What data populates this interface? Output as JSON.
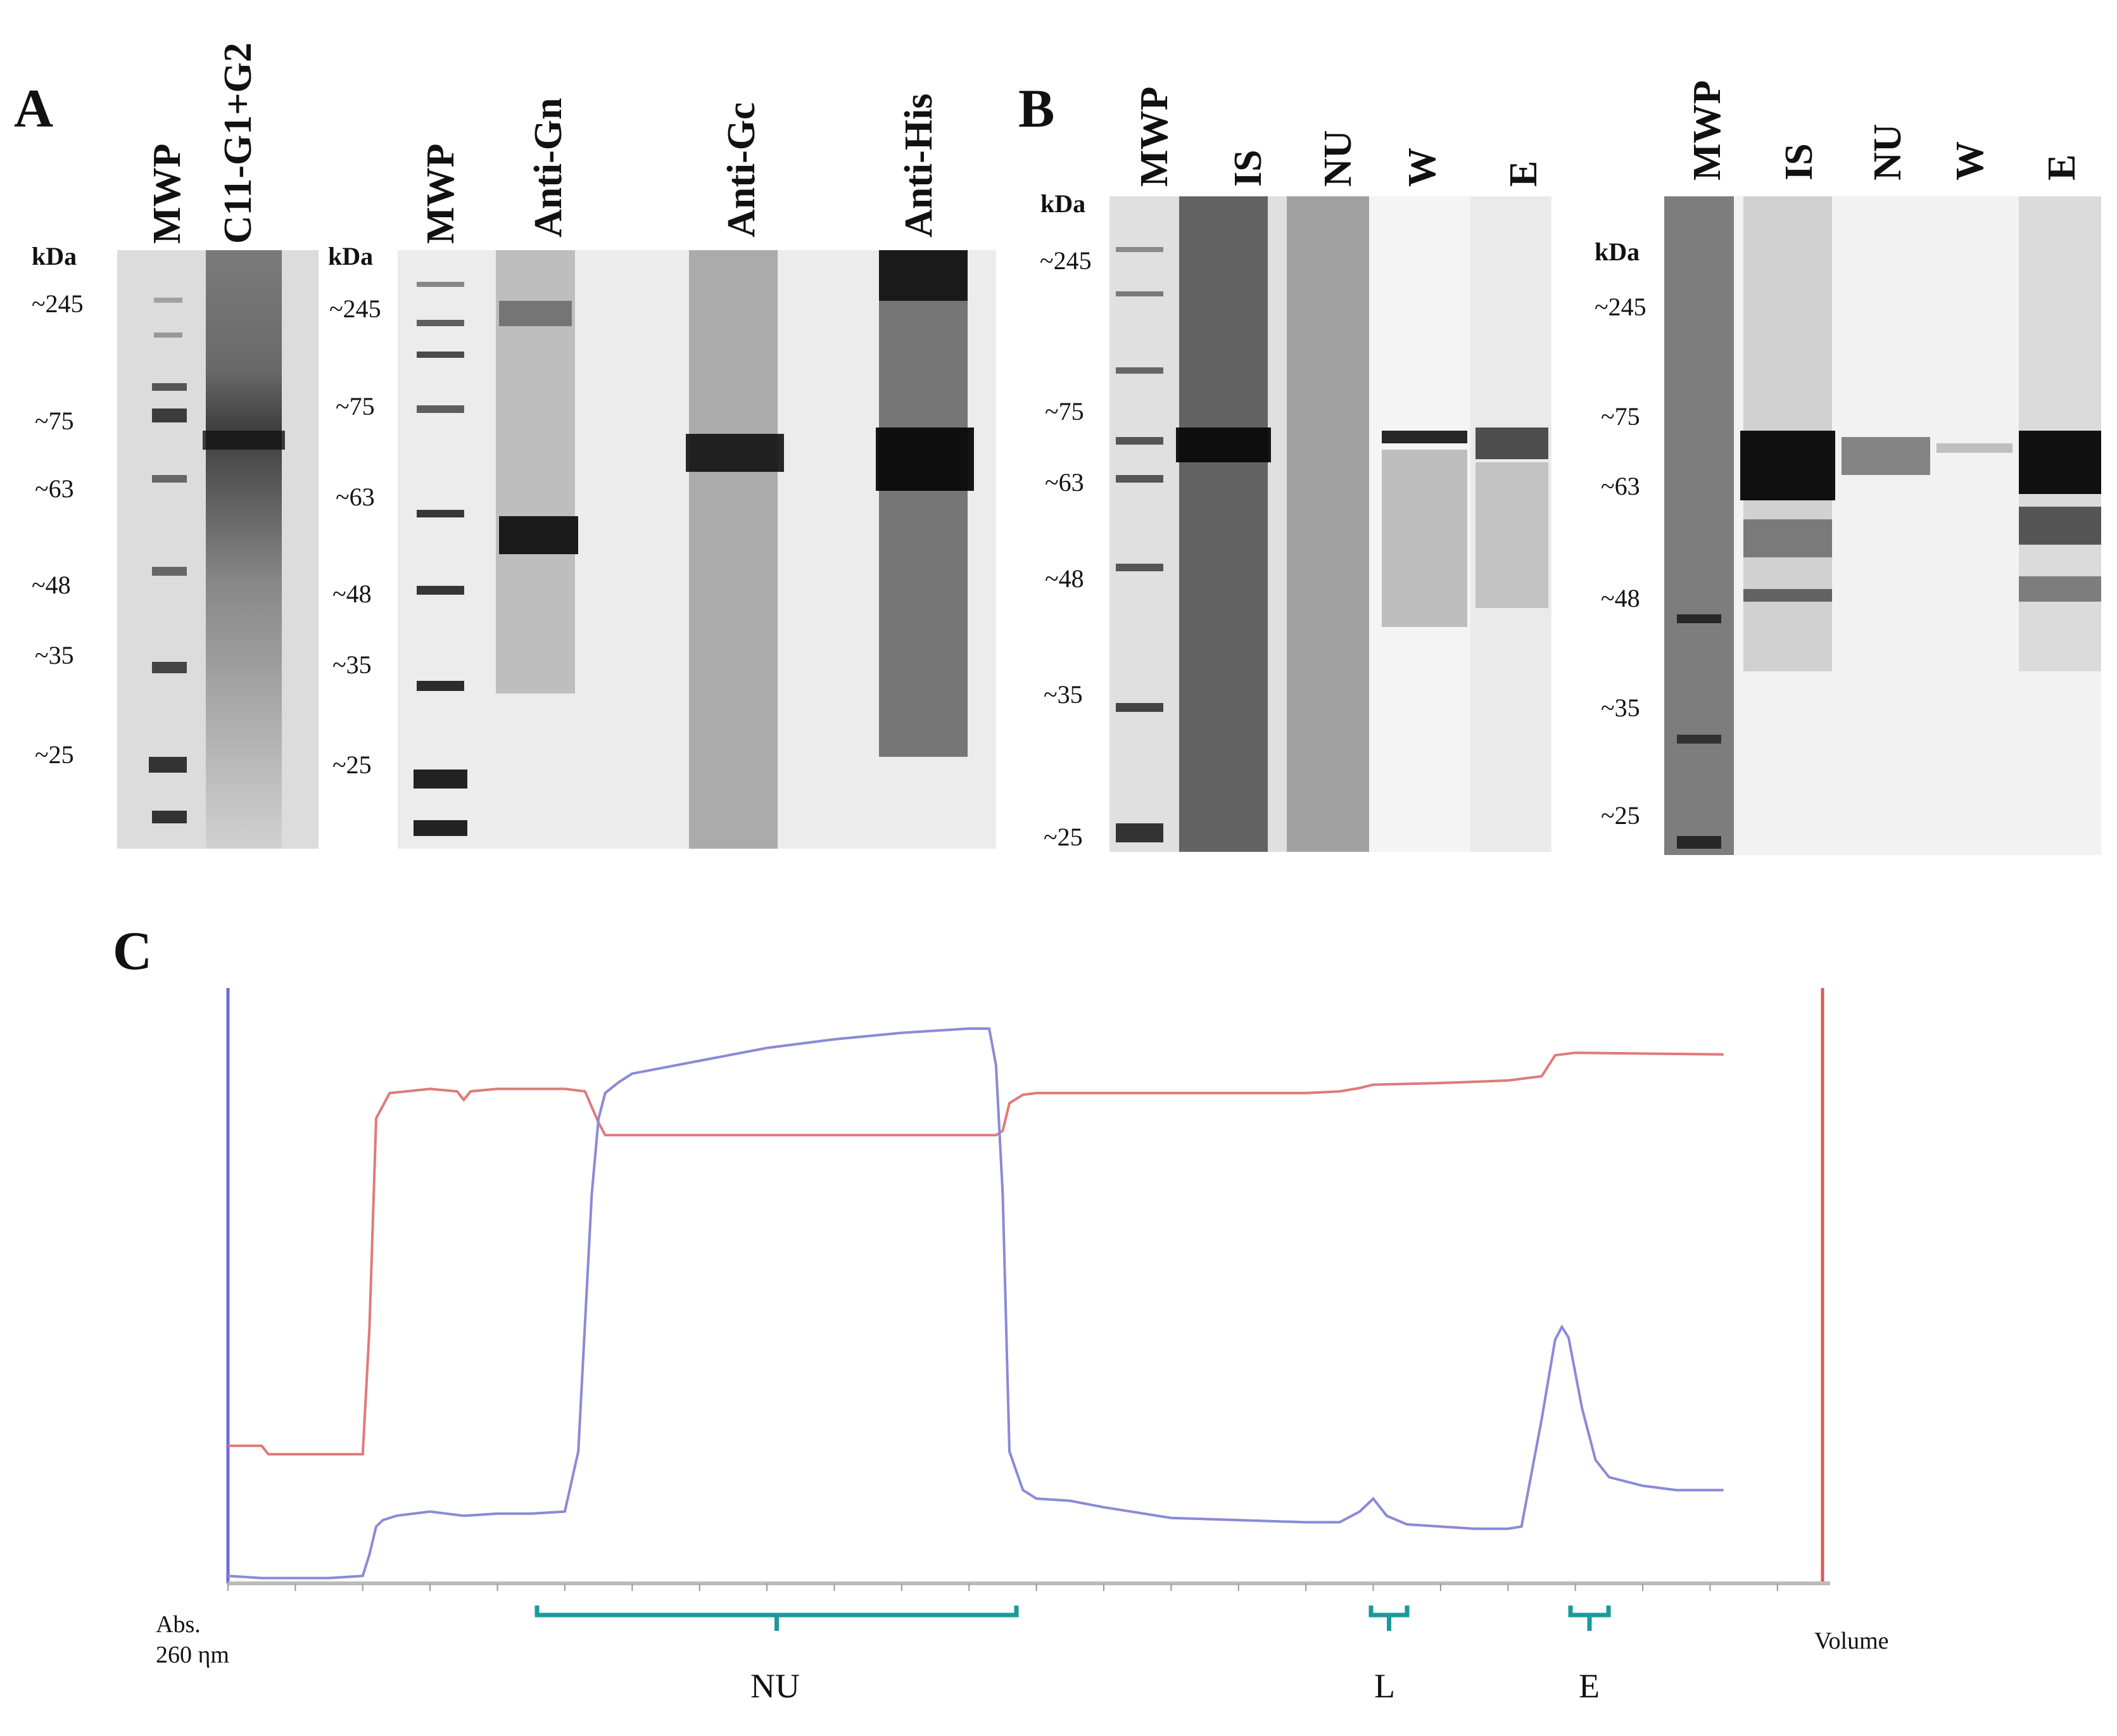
{
  "panels": {
    "A": {
      "letter": "A",
      "gel1": {
        "lanes": [
          "MWP",
          "C11-G1+G2"
        ],
        "unit": "kDa",
        "markers": [
          "~245",
          "~75",
          "~63",
          "~48",
          "~35",
          "~25"
        ]
      },
      "gel2": {
        "lanes": [
          "MWP",
          "Anti-Gn",
          "Anti-Gc",
          "Anti-His"
        ],
        "unit": "kDa",
        "markers": [
          "~245",
          "~75",
          "~63",
          "~48",
          "~35",
          "~25"
        ]
      }
    },
    "B": {
      "letter": "B",
      "gel1": {
        "lanes": [
          "MWP",
          "IS",
          "NU",
          "W",
          "E"
        ],
        "unit": "kDa",
        "markers": [
          "~245",
          "~75",
          "~63",
          "~48",
          "~35",
          "~25"
        ]
      },
      "gel2": {
        "lanes": [
          "MWP",
          "IS",
          "NU",
          "W",
          "E"
        ],
        "unit": "kDa",
        "markers": [
          "~245",
          "~75",
          "~63",
          "~48",
          "~35",
          "~25"
        ]
      }
    },
    "C": {
      "letter": "C",
      "y_label": "Abs.\n260 ηm",
      "x_label": "Volume",
      "fractions": [
        "NU",
        "L",
        "E"
      ],
      "colors": {
        "absorbance": "#8a8ad8",
        "conductivity": "#e07a7a",
        "bracket": "#1a9a9a"
      }
    }
  },
  "chart_data": {
    "type": "line",
    "x_label": "Volume",
    "y_label": "Abs. 260 ηm",
    "xlim": [
      0,
      235
    ],
    "series": [
      {
        "name": "",
        "x": [
          0,
          5,
          10,
          15,
          20,
          21,
          22,
          23,
          25,
          30,
          35,
          40,
          45,
          50,
          52,
          54,
          55,
          56,
          58,
          60,
          70,
          80,
          90,
          100,
          110,
          113,
          114,
          115,
          116,
          118,
          120,
          125,
          130,
          140,
          150,
          160,
          165,
          168,
          170,
          172,
          175,
          180,
          185,
          190,
          192,
          195,
          197,
          198,
          199,
          201,
          203,
          205,
          210,
          215,
          220,
          222
        ],
        "y": [
          2,
          1,
          1,
          1,
          2,
          12,
          25,
          28,
          30,
          32,
          30,
          31,
          31,
          32,
          60,
          180,
          215,
          227,
          232,
          236,
          242,
          248,
          252,
          255,
          257,
          257,
          240,
          180,
          60,
          42,
          38,
          37,
          34,
          29,
          28,
          27,
          27,
          32,
          38,
          30,
          26,
          25,
          24,
          24,
          25,
          75,
          112,
          118,
          113,
          80,
          56,
          48,
          44,
          42,
          42,
          42
        ]
      },
      {
        "name": "",
        "x": [
          0,
          5,
          6,
          10,
          15,
          20,
          21,
          22,
          24,
          30,
          34,
          35,
          36,
          40,
          50,
          53,
          55,
          56,
          60,
          80,
          100,
          113,
          114,
          115,
          116,
          118,
          120,
          140,
          160,
          165,
          168,
          170,
          180,
          190,
          195,
          197,
          200,
          210,
          222
        ],
        "y": [
          160,
          160,
          150,
          150,
          150,
          150,
          300,
          550,
          580,
          585,
          582,
          572,
          582,
          585,
          585,
          582,
          545,
          530,
          530,
          530,
          530,
          530,
          530,
          535,
          568,
          578,
          580,
          580,
          580,
          582,
          586,
          590,
          592,
          595,
          600,
          625,
          628,
          627,
          626
        ]
      }
    ],
    "annotations": [
      "NU",
      "L",
      "E"
    ]
  }
}
